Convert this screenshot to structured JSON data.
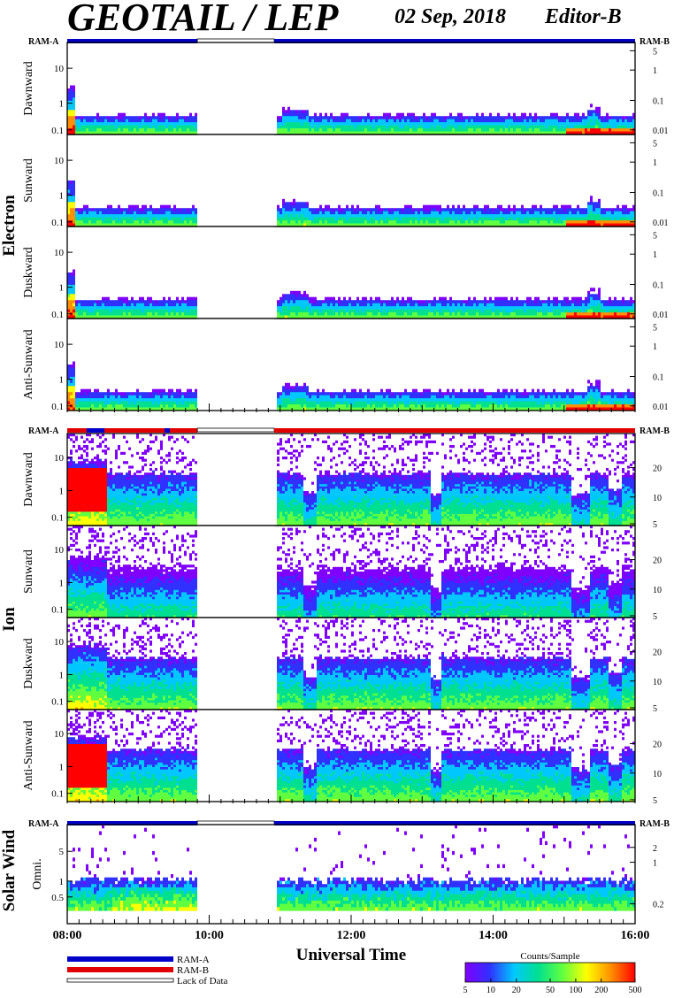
{
  "title": "GEOTAIL / LEP",
  "date": "02 Sep, 2018",
  "editor": "Editor-B",
  "colors": {
    "ram_a": "#0000c8",
    "ram_b": "#e00000",
    "colorbar": [
      "#8000ff",
      "#3030ff",
      "#00c8ff",
      "#00e090",
      "#60ff40",
      "#ffff00",
      "#ff9000",
      "#ff0000"
    ]
  },
  "chart_data": {
    "type": "heatmap",
    "xlabel": "Universal Time",
    "x_ticks": [
      "08:00",
      "10:00",
      "12:00",
      "14:00",
      "16:00"
    ],
    "x_range": [
      "08:00",
      "16:00"
    ],
    "data_gap": [
      "09:50",
      "10:55"
    ],
    "groups": [
      {
        "name": "Electron",
        "ram_left": "RAM-A",
        "ram_right": "RAM-B",
        "y_ticks_left": [
          "0.1",
          "1",
          "10"
        ],
        "y_ticks_right": [
          "0.01",
          "0.1",
          "1",
          "5"
        ],
        "panels": [
          "Dawnward",
          "Sunward",
          "Duskward",
          "Anti-Sunward"
        ]
      },
      {
        "name": "Ion",
        "ram_left": "RAM-A",
        "ram_right": "RAM-B",
        "y_ticks_left": [
          "0.1",
          "1",
          "10"
        ],
        "y_ticks_right": [
          "5",
          "10",
          "20"
        ],
        "panels": [
          "Dawnward",
          "Sunward",
          "Duskward",
          "Anti-Sunward"
        ]
      },
      {
        "name": "Solar Wind",
        "ram_left": "RAM-A",
        "ram_right": "RAM-B",
        "y_ticks_left": [
          "0.5",
          "1",
          "5"
        ],
        "y_ticks_right": [
          "0.2",
          "1",
          "2"
        ],
        "panels": [
          "Omni."
        ]
      }
    ],
    "legend": [
      "RAM-A",
      "RAM-B",
      "Lack of Data"
    ],
    "colorbar": {
      "label": "Counts/Sample",
      "ticks": [
        "5",
        "10",
        "20",
        "50",
        "100",
        "200",
        "500"
      ],
      "scale": "log"
    }
  }
}
